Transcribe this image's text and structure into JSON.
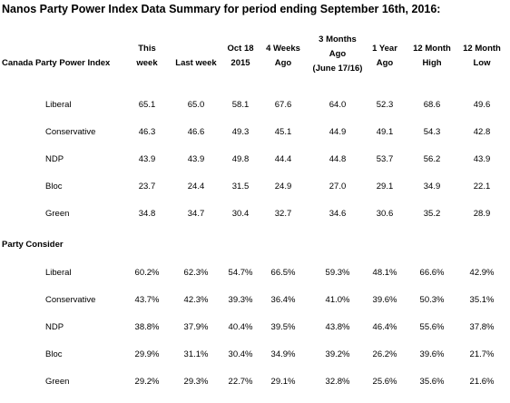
{
  "title": "Nanos Party Power Index Data Summary for period ending September 16th, 2016:",
  "row_header": "Canada Party Power Index",
  "columns": [
    {
      "line1": "",
      "line2": "This",
      "line3": "week"
    },
    {
      "line1": "",
      "line2": "",
      "line3": "Last week"
    },
    {
      "line1": "",
      "line2": "Oct 18",
      "line3": "2015"
    },
    {
      "line1": "",
      "line2": "4 Weeks",
      "line3": "Ago"
    },
    {
      "line1": "3 Months",
      "line2": "Ago",
      "line3": "(June 17/16)"
    },
    {
      "line1": "",
      "line2": "1 Year",
      "line3": "Ago"
    },
    {
      "line1": "",
      "line2": "12 Month",
      "line3": "High"
    },
    {
      "line1": "",
      "line2": "12 Month",
      "line3": "Low"
    }
  ],
  "power_index": [
    {
      "party": "Liberal",
      "values": [
        "65.1",
        "65.0",
        "58.1",
        "67.6",
        "64.0",
        "52.3",
        "68.6",
        "49.6"
      ]
    },
    {
      "party": "Conservative",
      "values": [
        "46.3",
        "46.6",
        "49.3",
        "45.1",
        "44.9",
        "49.1",
        "54.3",
        "42.8"
      ]
    },
    {
      "party": "NDP",
      "values": [
        "43.9",
        "43.9",
        "49.8",
        "44.4",
        "44.8",
        "53.7",
        "56.2",
        "43.9"
      ]
    },
    {
      "party": "Bloc",
      "values": [
        "23.7",
        "24.4",
        "31.5",
        "24.9",
        "27.0",
        "29.1",
        "34.9",
        "22.1"
      ]
    },
    {
      "party": "Green",
      "values": [
        "34.8",
        "34.7",
        "30.4",
        "32.7",
        "34.6",
        "30.6",
        "35.2",
        "28.9"
      ]
    }
  ],
  "consider_section": "Party Consider",
  "consider": [
    {
      "party": "Liberal",
      "values": [
        "60.2%",
        "62.3%",
        "54.7%",
        "66.5%",
        "59.3%",
        "48.1%",
        "66.6%",
        "42.9%"
      ]
    },
    {
      "party": "Conservative",
      "values": [
        "43.7%",
        "42.3%",
        "39.3%",
        "36.4%",
        "41.0%",
        "39.6%",
        "50.3%",
        "35.1%"
      ]
    },
    {
      "party": "NDP",
      "values": [
        "38.8%",
        "37.9%",
        "40.4%",
        "39.5%",
        "43.8%",
        "46.4%",
        "55.6%",
        "37.8%"
      ]
    },
    {
      "party": "Bloc",
      "values": [
        "29.9%",
        "31.1%",
        "30.4%",
        "34.9%",
        "39.2%",
        "26.2%",
        "39.6%",
        "21.7%"
      ]
    },
    {
      "party": "Green",
      "values": [
        "29.2%",
        "29.3%",
        "22.7%",
        "29.1%",
        "32.8%",
        "25.6%",
        "35.6%",
        "21.6%"
      ]
    }
  ]
}
